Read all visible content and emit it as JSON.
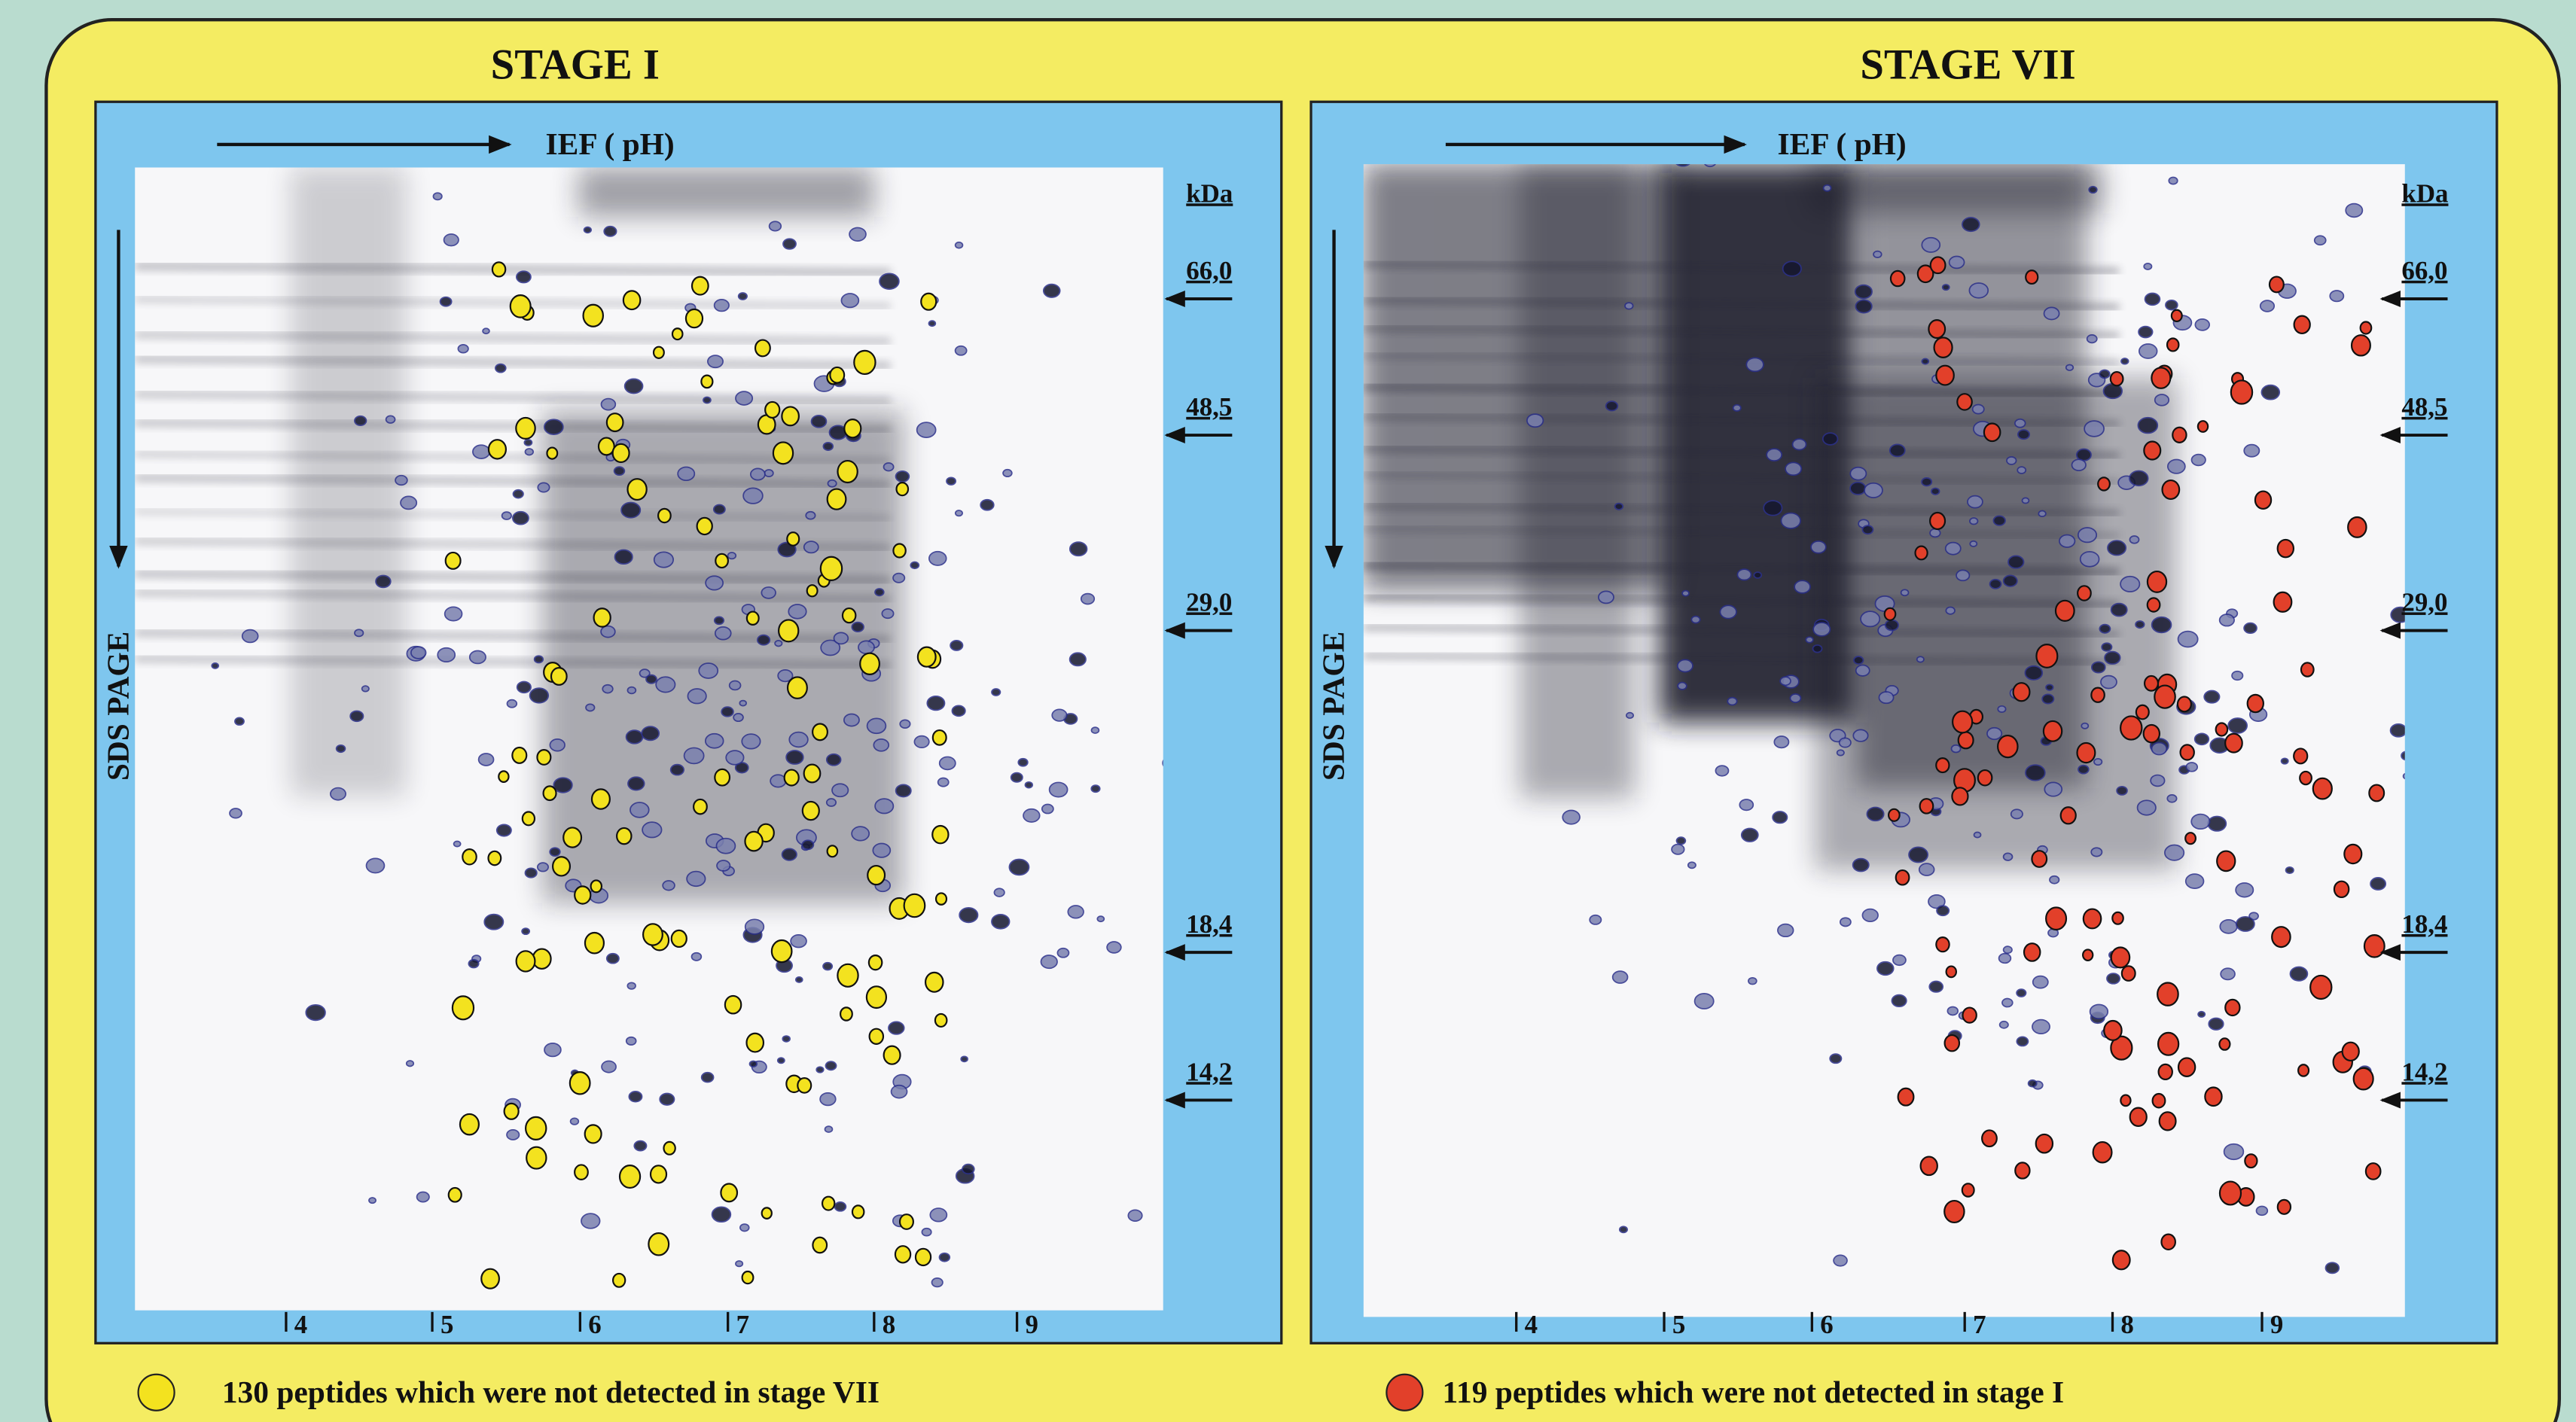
{
  "panels": [
    {
      "title": "STAGE I",
      "x_axis_label": "IEF ( pH)",
      "y_axis_label": "SDS PAGE",
      "mw_unit": "kDa",
      "mw_markers": [
        "66,0",
        "48,5",
        "29,0",
        "18,4",
        "14,2"
      ],
      "ph_labels": [
        "4",
        "5",
        "6",
        "7",
        "8",
        "9"
      ],
      "legend": "130 peptides which were not detected in stage VII"
    },
    {
      "title": "STAGE VII",
      "x_axis_label": "IEF ( pH)",
      "y_axis_label": "SDS PAGE",
      "mw_unit": "kDa",
      "mw_markers": [
        "66,0",
        "48,5",
        "29,0",
        "18,4",
        "14,2"
      ],
      "ph_labels": [
        "4",
        "5",
        "6",
        "7",
        "8",
        "9"
      ],
      "legend": "119 peptides which were not detected in stage I"
    }
  ]
}
